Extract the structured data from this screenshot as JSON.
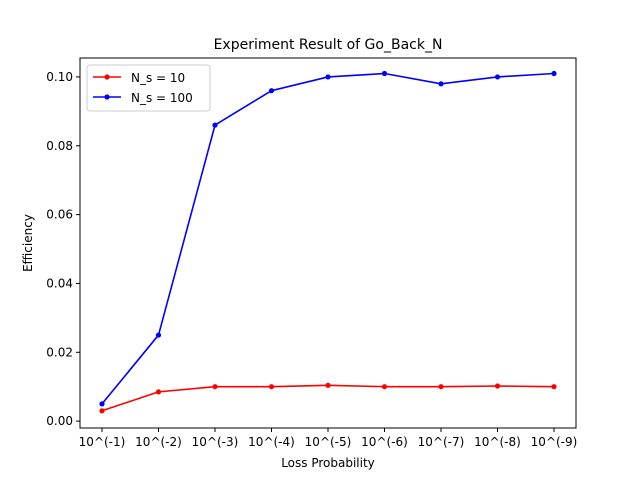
{
  "chart_data": {
    "type": "line",
    "title": "Experiment Result of Go_Back_N",
    "xlabel": "Loss Probability",
    "ylabel": "Efficiency",
    "categories": [
      "10^(-1)",
      "10^(-2)",
      "10^(-3)",
      "10^(-4)",
      "10^(-5)",
      "10^(-6)",
      "10^(-7)",
      "10^(-8)",
      "10^(-9)"
    ],
    "ylim": [
      -0.002,
      0.1055
    ],
    "yticks": [
      0.0,
      0.02,
      0.04,
      0.06,
      0.08,
      0.1
    ],
    "ytick_labels": [
      "0.00",
      "0.02",
      "0.04",
      "0.06",
      "0.08",
      "0.10"
    ],
    "grid": false,
    "legend_position": "top-left",
    "series": [
      {
        "name": "N_s = 10",
        "color": "#ff0000",
        "marker": "dot",
        "values": [
          0.003,
          0.0085,
          0.01,
          0.01,
          0.0104,
          0.01,
          0.01,
          0.0102,
          0.01
        ]
      },
      {
        "name": "N_s = 100",
        "color": "#0000ff",
        "marker": "dot",
        "values": [
          0.005,
          0.025,
          0.086,
          0.096,
          0.1,
          0.101,
          0.098,
          0.1,
          0.101
        ]
      }
    ]
  }
}
